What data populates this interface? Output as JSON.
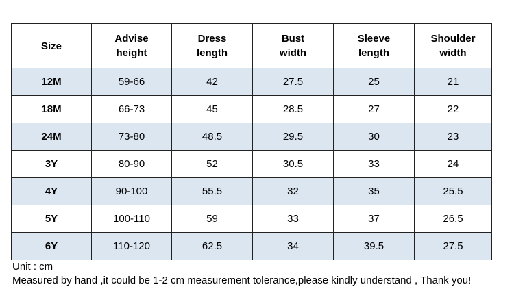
{
  "columns": [
    [
      "Size"
    ],
    [
      "Advise",
      "height"
    ],
    [
      "Dress",
      "length"
    ],
    [
      "Bust",
      "width"
    ],
    [
      "Sleeve",
      "length"
    ],
    [
      "Shoulder",
      "width"
    ]
  ],
  "rows": [
    [
      "12M",
      "59-66",
      "42",
      "27.5",
      "25",
      "21"
    ],
    [
      "18M",
      "66-73",
      "45",
      "28.5",
      "27",
      "22"
    ],
    [
      "24M",
      "73-80",
      "48.5",
      "29.5",
      "30",
      "23"
    ],
    [
      "3Y",
      "80-90",
      "52",
      "30.5",
      "33",
      "24"
    ],
    [
      "4Y",
      "90-100",
      "55.5",
      "32",
      "35",
      "25.5"
    ],
    [
      "5Y",
      "100-110",
      "59",
      "33",
      "37",
      "26.5"
    ],
    [
      "6Y",
      "110-120",
      "62.5",
      "34",
      "39.5",
      "27.5"
    ]
  ],
  "notes": {
    "unit": "Unit : cm",
    "tolerance": "Measured by hand ,it could be 1-2 cm measurement tolerance,please kindly understand , Thank you!"
  },
  "colors": {
    "row_shade": "#dce6f1",
    "border": "#222222"
  }
}
